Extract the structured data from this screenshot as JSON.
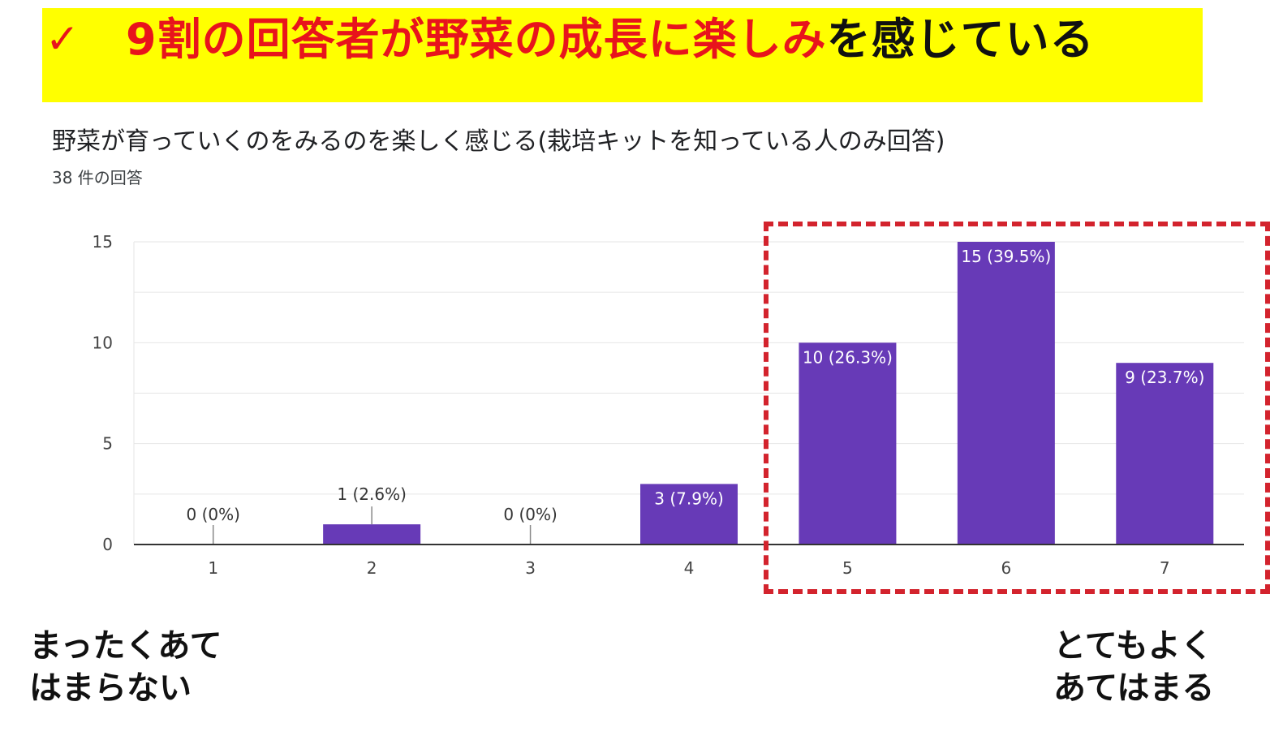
{
  "banner": {
    "check": "✓",
    "title_red": "9割の回答者が野菜の成長に楽しみ",
    "title_black": "を感じている",
    "background": "#ffff00",
    "accent": "#e8141c"
  },
  "chart_data": {
    "type": "bar",
    "title": "野菜が育っていくのをみるのを楽しく感じる(栽培キットを知っている人のみ回答)",
    "subtitle": "38 件の回答",
    "categories": [
      "1",
      "2",
      "3",
      "4",
      "5",
      "6",
      "7"
    ],
    "values": [
      0,
      1,
      0,
      3,
      10,
      15,
      9
    ],
    "data_labels": [
      "0 (0%)",
      "1 (2.6%)",
      "0 (0%)",
      "3 (7.9%)",
      "10 (26.3%)",
      "15 (39.5%)",
      "9 (23.7%)"
    ],
    "yticks": [
      0,
      5,
      10,
      15
    ],
    "ylim": [
      0,
      15
    ],
    "bar_color": "#673ab7",
    "grid": true,
    "highlight_categories": [
      "5",
      "6",
      "7"
    ],
    "highlight_color": "#d3232d"
  },
  "scale_notes": {
    "left": [
      "まったくあて",
      "はまらない"
    ],
    "right": [
      "とてもよく",
      "あてはまる"
    ]
  }
}
